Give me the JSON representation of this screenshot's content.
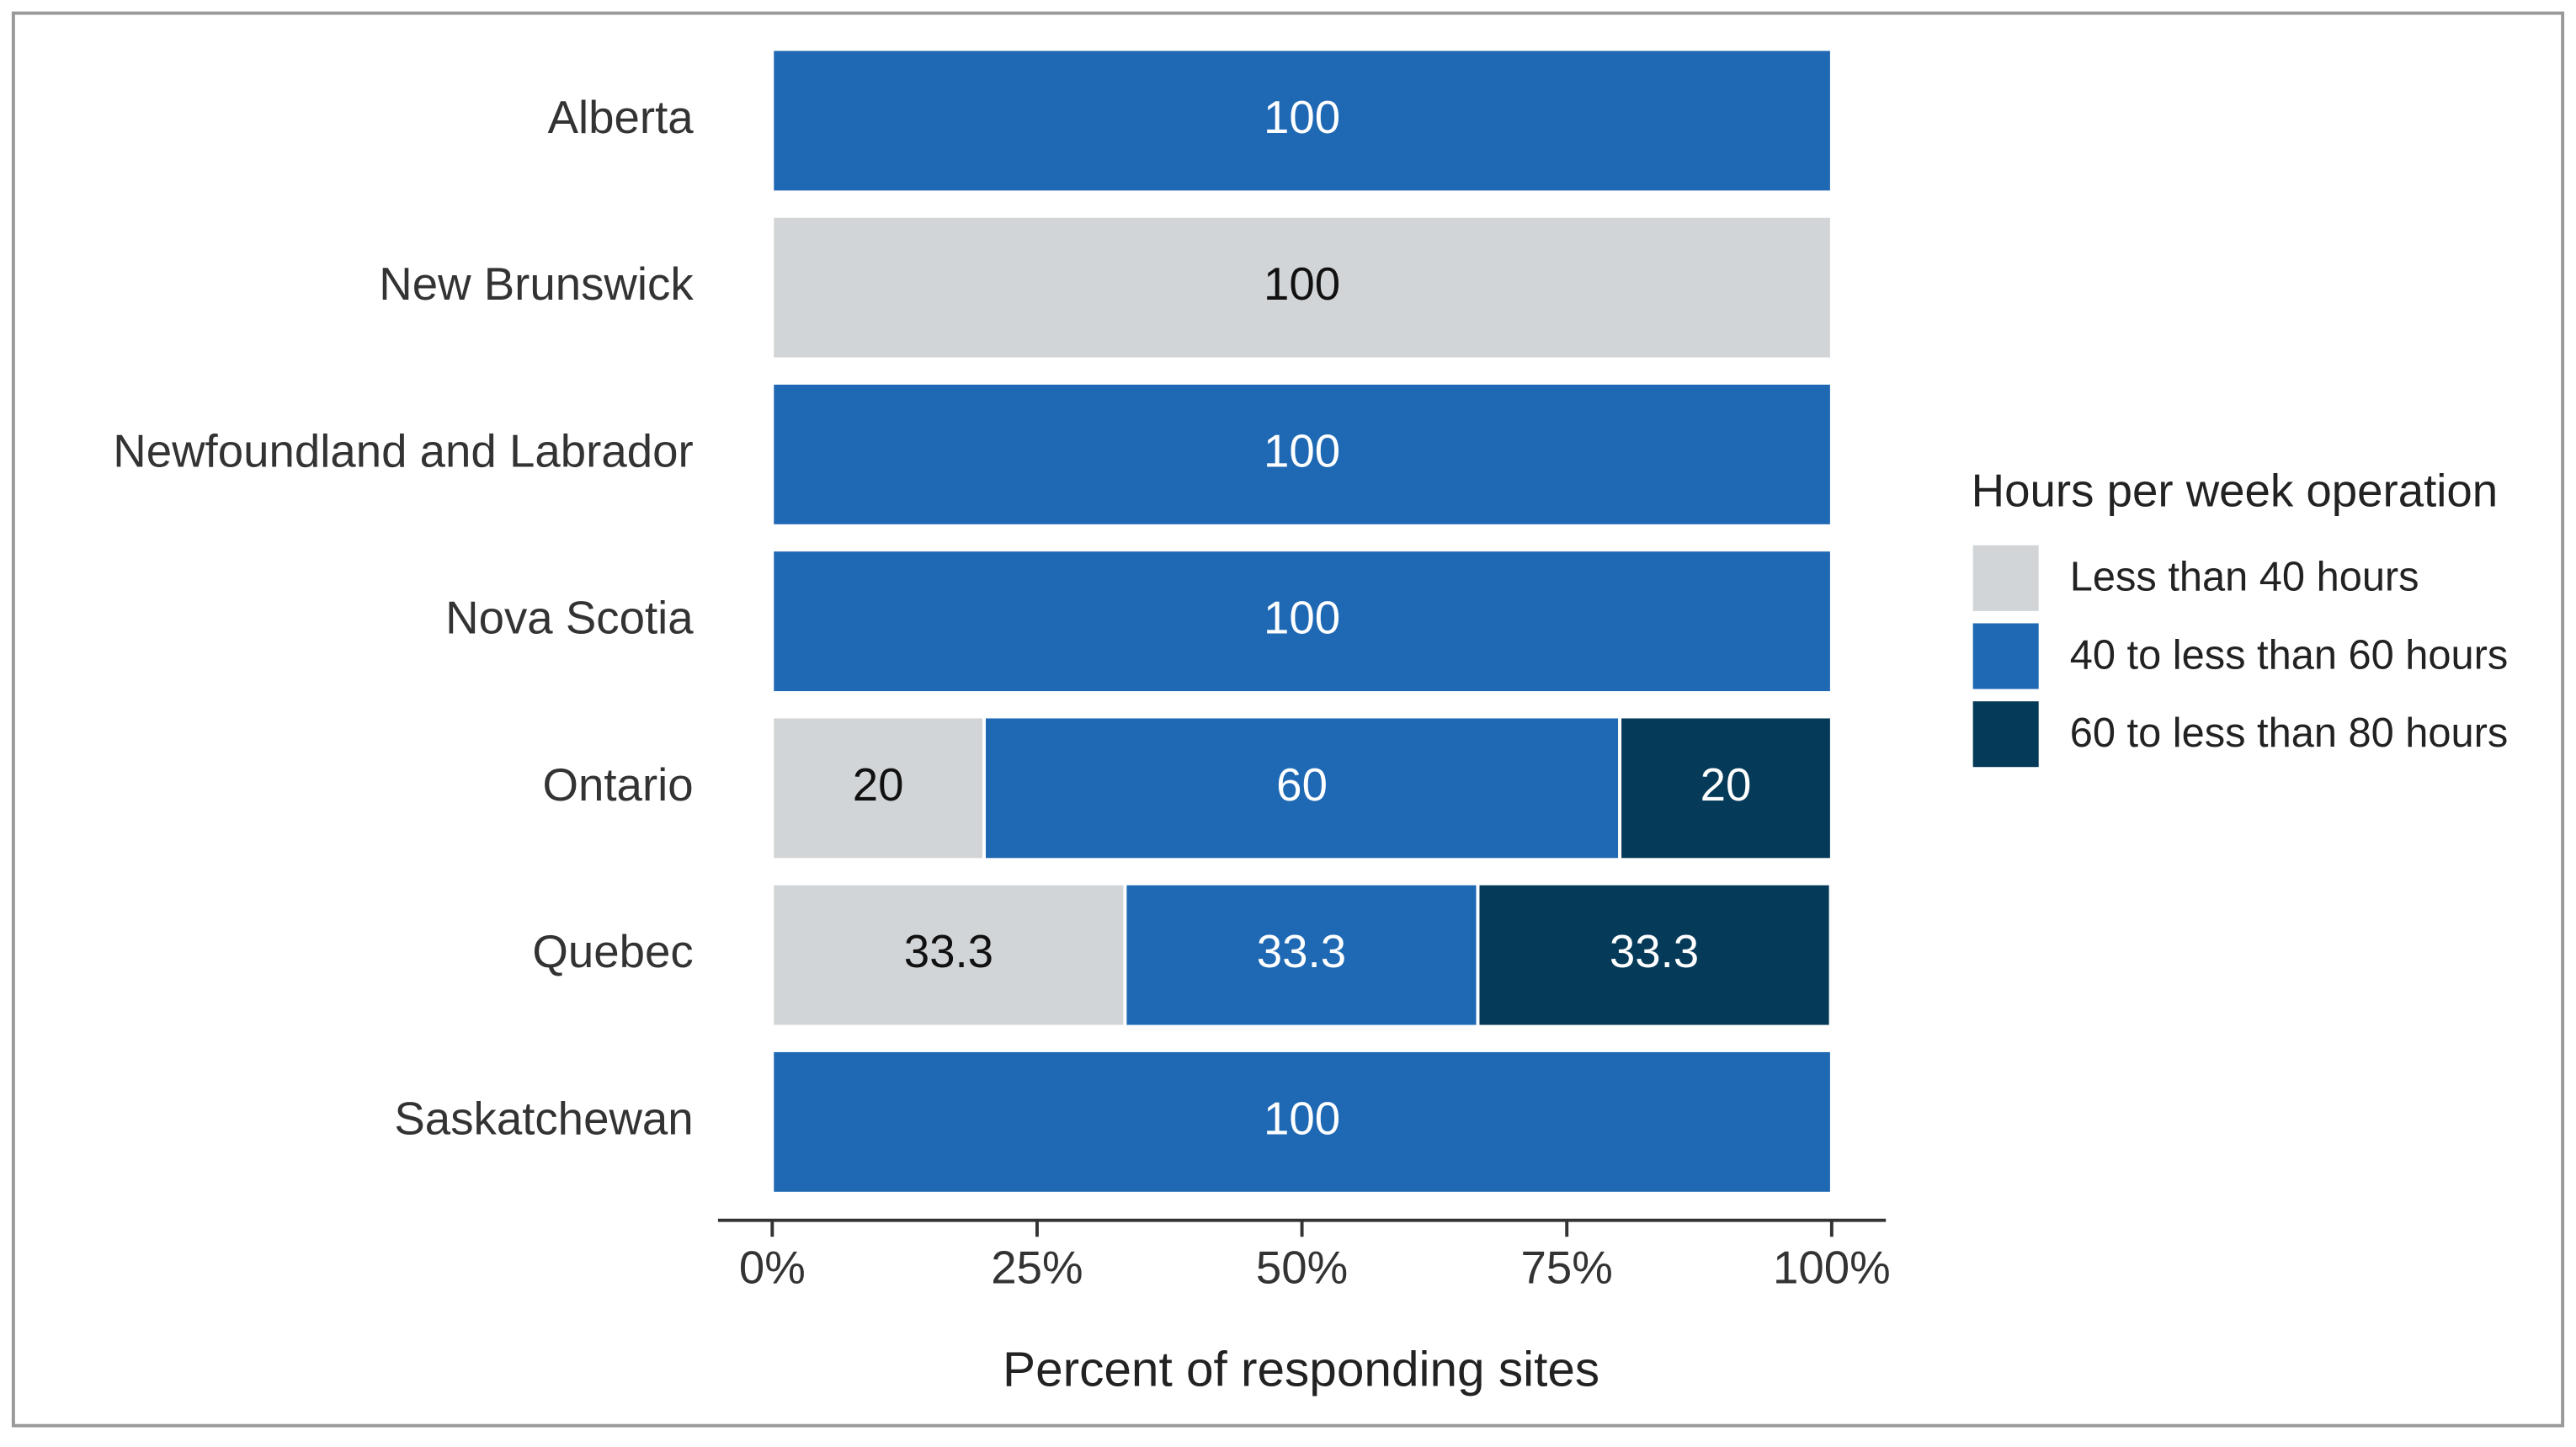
{
  "chart_data": {
    "type": "stacked-bar-horizontal",
    "categories": [
      "Alberta",
      "New Brunswick",
      "Newfoundland and Labrador",
      "Nova Scotia",
      "Ontario",
      "Quebec",
      "Saskatchewan"
    ],
    "series": [
      {
        "name": "Less than 40 hours",
        "color": "#d2d5d7",
        "values": [
          null,
          100,
          null,
          null,
          20,
          33.3,
          null
        ]
      },
      {
        "name": "40 to less than 60 hours",
        "color": "#1f69b4",
        "values": [
          100,
          null,
          100,
          100,
          60,
          33.3,
          100
        ]
      },
      {
        "name": "60 to less than 80 hours",
        "color": "#053a59",
        "values": [
          null,
          null,
          null,
          null,
          20,
          33.3,
          null
        ]
      }
    ],
    "xlabel": "Percent of responding sites",
    "xlim": [
      0,
      100
    ],
    "xticks": [
      {
        "value": 0,
        "label": "0%"
      },
      {
        "value": 25,
        "label": "25%"
      },
      {
        "value": 50,
        "label": "50%"
      },
      {
        "value": 75,
        "label": "75%"
      },
      {
        "value": 100,
        "label": "100%"
      }
    ],
    "legend_title": "Hours per week operation",
    "legend": "right"
  }
}
